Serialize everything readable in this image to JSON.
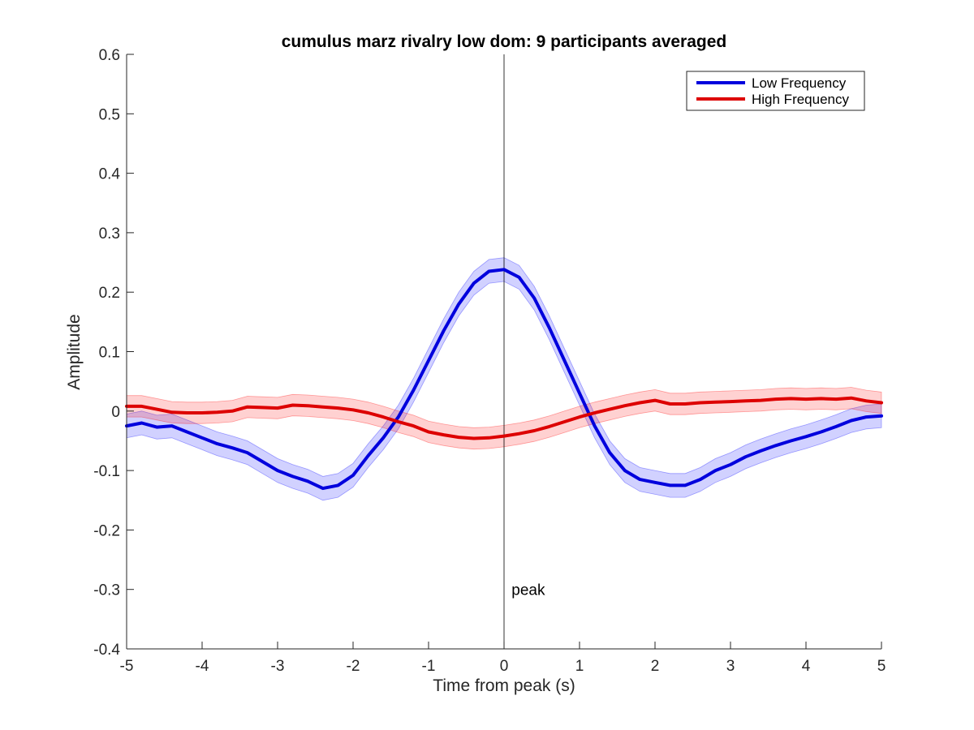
{
  "chart_data": {
    "type": "line",
    "title": "cumulus marz rivalry low dom: 9 participants averaged",
    "xlabel": "Time from peak (s)",
    "ylabel": "Amplitude",
    "xlim": [
      -5,
      5
    ],
    "ylim": [
      -0.4,
      0.6
    ],
    "xticks": [
      -5,
      -4,
      -3,
      -2,
      -1,
      0,
      1,
      2,
      3,
      4,
      5
    ],
    "yticks": [
      -0.4,
      -0.3,
      -0.2,
      -0.1,
      0,
      0.1,
      0.2,
      0.3,
      0.4,
      0.5,
      0.6
    ],
    "grid": false,
    "legend_position": "top-right",
    "annotation": {
      "text": "peak",
      "x": 0.1,
      "y": -0.3
    },
    "vline_x": 0,
    "series": [
      {
        "name": "Low Frequency",
        "color": "#0000dd",
        "band_color": "#0000ff",
        "x": [
          -5,
          -4.8,
          -4.6,
          -4.4,
          -4.2,
          -4,
          -3.8,
          -3.6,
          -3.4,
          -3.2,
          -3,
          -2.8,
          -2.6,
          -2.4,
          -2.2,
          -2,
          -1.8,
          -1.6,
          -1.4,
          -1.2,
          -1,
          -0.8,
          -0.6,
          -0.4,
          -0.2,
          0,
          0.2,
          0.4,
          0.6,
          0.8,
          1,
          1.2,
          1.4,
          1.6,
          1.8,
          2,
          2.2,
          2.4,
          2.6,
          2.8,
          3,
          3.2,
          3.4,
          3.6,
          3.8,
          4,
          4.2,
          4.4,
          4.6,
          4.8,
          5
        ],
        "y": [
          -0.025,
          -0.02,
          -0.027,
          -0.025,
          -0.035,
          -0.045,
          -0.055,
          -0.062,
          -0.07,
          -0.085,
          -0.1,
          -0.11,
          -0.118,
          -0.13,
          -0.125,
          -0.108,
          -0.075,
          -0.045,
          -0.01,
          0.035,
          0.085,
          0.135,
          0.18,
          0.215,
          0.235,
          0.238,
          0.225,
          0.19,
          0.14,
          0.085,
          0.03,
          -0.025,
          -0.07,
          -0.1,
          -0.115,
          -0.12,
          -0.125,
          -0.125,
          -0.115,
          -0.1,
          -0.09,
          -0.077,
          -0.067,
          -0.058,
          -0.05,
          -0.043,
          -0.035,
          -0.026,
          -0.016,
          -0.01,
          -0.008
        ],
        "err": 0.02
      },
      {
        "name": "High Frequency",
        "color": "#dd0000",
        "band_color": "#ff0000",
        "x": [
          -5,
          -4.8,
          -4.6,
          -4.4,
          -4.2,
          -4,
          -3.8,
          -3.6,
          -3.4,
          -3.2,
          -3,
          -2.8,
          -2.6,
          -2.4,
          -2.2,
          -2,
          -1.8,
          -1.6,
          -1.4,
          -1.2,
          -1,
          -0.8,
          -0.6,
          -0.4,
          -0.2,
          0,
          0.2,
          0.4,
          0.6,
          0.8,
          1,
          1.2,
          1.4,
          1.6,
          1.8,
          2,
          2.2,
          2.4,
          2.6,
          2.8,
          3,
          3.2,
          3.4,
          3.6,
          3.8,
          4,
          4.2,
          4.4,
          4.6,
          4.8,
          5
        ],
        "y": [
          0.008,
          0.008,
          0.003,
          -0.002,
          -0.003,
          -0.003,
          -0.002,
          0,
          0.007,
          0.006,
          0.005,
          0.01,
          0.009,
          0.007,
          0.005,
          0.002,
          -0.003,
          -0.01,
          -0.018,
          -0.025,
          -0.035,
          -0.04,
          -0.044,
          -0.046,
          -0.045,
          -0.042,
          -0.038,
          -0.033,
          -0.026,
          -0.018,
          -0.01,
          -0.003,
          0.003,
          0.009,
          0.014,
          0.018,
          0.012,
          0.012,
          0.014,
          0.015,
          0.016,
          0.017,
          0.018,
          0.02,
          0.021,
          0.02,
          0.021,
          0.02,
          0.022,
          0.017,
          0.014
        ],
        "err": 0.018
      }
    ]
  }
}
